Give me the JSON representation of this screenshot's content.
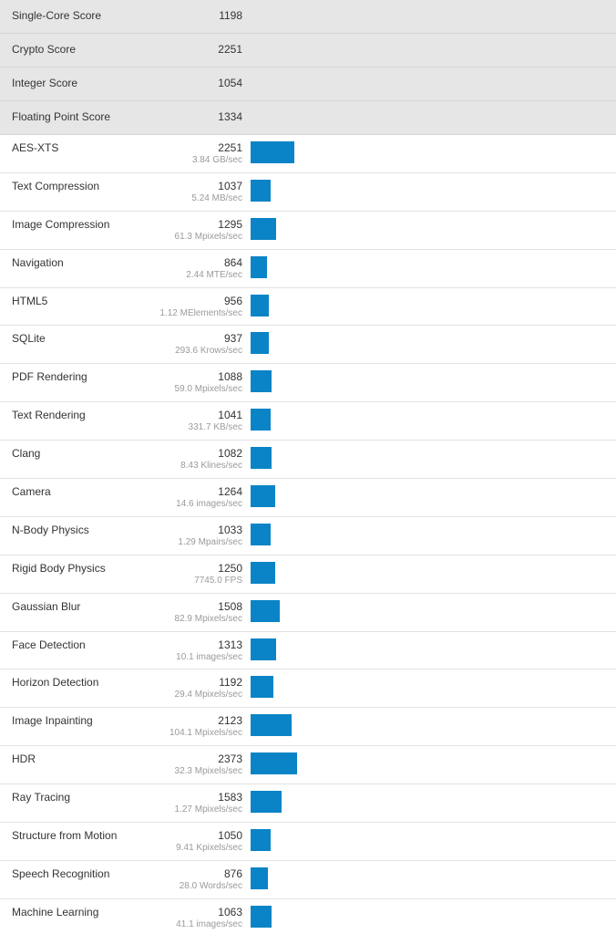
{
  "colors": {
    "summary_bg": "#e6e6e6",
    "bar": "#0a84c6",
    "text": "#333333",
    "subtext": "#9a9a9a"
  },
  "summary": [
    {
      "name": "Single-Core Score",
      "score": "1198"
    },
    {
      "name": "Crypto Score",
      "score": "2251"
    },
    {
      "name": "Integer Score",
      "score": "1054"
    },
    {
      "name": "Floating Point Score",
      "score": "1334"
    }
  ],
  "benchmarks": [
    {
      "name": "AES-XTS",
      "score": "2251",
      "rate": "3.84 GB/sec",
      "value": 2251
    },
    {
      "name": "Text Compression",
      "score": "1037",
      "rate": "5.24 MB/sec",
      "value": 1037
    },
    {
      "name": "Image Compression",
      "score": "1295",
      "rate": "61.3 Mpixels/sec",
      "value": 1295
    },
    {
      "name": "Navigation",
      "score": "864",
      "rate": "2.44 MTE/sec",
      "value": 864
    },
    {
      "name": "HTML5",
      "score": "956",
      "rate": "1.12 MElements/sec",
      "value": 956
    },
    {
      "name": "SQLite",
      "score": "937",
      "rate": "293.6 Krows/sec",
      "value": 937
    },
    {
      "name": "PDF Rendering",
      "score": "1088",
      "rate": "59.0 Mpixels/sec",
      "value": 1088
    },
    {
      "name": "Text Rendering",
      "score": "1041",
      "rate": "331.7 KB/sec",
      "value": 1041
    },
    {
      "name": "Clang",
      "score": "1082",
      "rate": "8.43 Klines/sec",
      "value": 1082
    },
    {
      "name": "Camera",
      "score": "1264",
      "rate": "14.6 images/sec",
      "value": 1264
    },
    {
      "name": "N-Body Physics",
      "score": "1033",
      "rate": "1.29 Mpairs/sec",
      "value": 1033
    },
    {
      "name": "Rigid Body Physics",
      "score": "1250",
      "rate": "7745.0 FPS",
      "value": 1250
    },
    {
      "name": "Gaussian Blur",
      "score": "1508",
      "rate": "82.9 Mpixels/sec",
      "value": 1508
    },
    {
      "name": "Face Detection",
      "score": "1313",
      "rate": "10.1 images/sec",
      "value": 1313
    },
    {
      "name": "Horizon Detection",
      "score": "1192",
      "rate": "29.4 Mpixels/sec",
      "value": 1192
    },
    {
      "name": "Image Inpainting",
      "score": "2123",
      "rate": "104.1 Mpixels/sec",
      "value": 2123
    },
    {
      "name": "HDR",
      "score": "2373",
      "rate": "32.3 Mpixels/sec",
      "value": 2373
    },
    {
      "name": "Ray Tracing",
      "score": "1583",
      "rate": "1.27 Mpixels/sec",
      "value": 1583
    },
    {
      "name": "Structure from Motion",
      "score": "1050",
      "rate": "9.41 Kpixels/sec",
      "value": 1050
    },
    {
      "name": "Speech Recognition",
      "score": "876",
      "rate": "28.0 Words/sec",
      "value": 876
    },
    {
      "name": "Machine Learning",
      "score": "1063",
      "rate": "41.1 images/sec",
      "value": 1063
    }
  ]
}
